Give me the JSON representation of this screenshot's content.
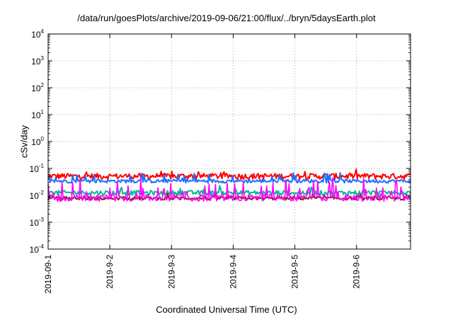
{
  "chart_data": {
    "type": "line",
    "title": "/data/run/goesPlots/archive/2019-09-06/21:00/flux/../bryn/5daysEarth.plot",
    "xlabel": "Coordinated Universal Time (UTC)",
    "ylabel": "cSv/day",
    "yscale": "log",
    "ylim": [
      0.0001,
      10000
    ],
    "y_ticks": [
      {
        "base": "10",
        "exp": "-4",
        "value": 0.0001
      },
      {
        "base": "10",
        "exp": "-3",
        "value": 0.001
      },
      {
        "base": "10",
        "exp": "-2",
        "value": 0.01
      },
      {
        "base": "10",
        "exp": "-1",
        "value": 0.1
      },
      {
        "base": "10",
        "exp": "0",
        "value": 1
      },
      {
        "base": "10",
        "exp": "1",
        "value": 10
      },
      {
        "base": "10",
        "exp": "2",
        "value": 100
      },
      {
        "base": "10",
        "exp": "3",
        "value": 1000
      },
      {
        "base": "10",
        "exp": "4",
        "value": 10000
      }
    ],
    "x_ticks": [
      "2019-09-1",
      "2019-9-2",
      "2019-9-3",
      "2019-9-4",
      "2019-9-5",
      "2019-9-6"
    ],
    "xlim": [
      "2019-09-01 00:00",
      "2019-09-06 21:00"
    ],
    "grid": true,
    "series": [
      {
        "color": "#ff0000",
        "base": 0.052,
        "spread": 0.25,
        "spike_prob": 0.06,
        "spike_factor": 1.5
      },
      {
        "color": "#1f6fff",
        "base": 0.034,
        "spread": 0.15,
        "spike_prob": 0.08,
        "spike_factor": 2.0
      },
      {
        "color": "#00b89a",
        "base": 0.0125,
        "spread": 0.2,
        "spike_prob": 0.05,
        "spike_factor": 1.6
      },
      {
        "color": "#8a2020",
        "base": 0.0078,
        "spread": 0.15,
        "spike_prob": 0.03,
        "spike_factor": 1.4
      },
      {
        "color": "#ff00ff",
        "base": 0.0085,
        "spread": 0.3,
        "spike_prob": 0.22,
        "spike_factor": 4.5
      }
    ]
  }
}
